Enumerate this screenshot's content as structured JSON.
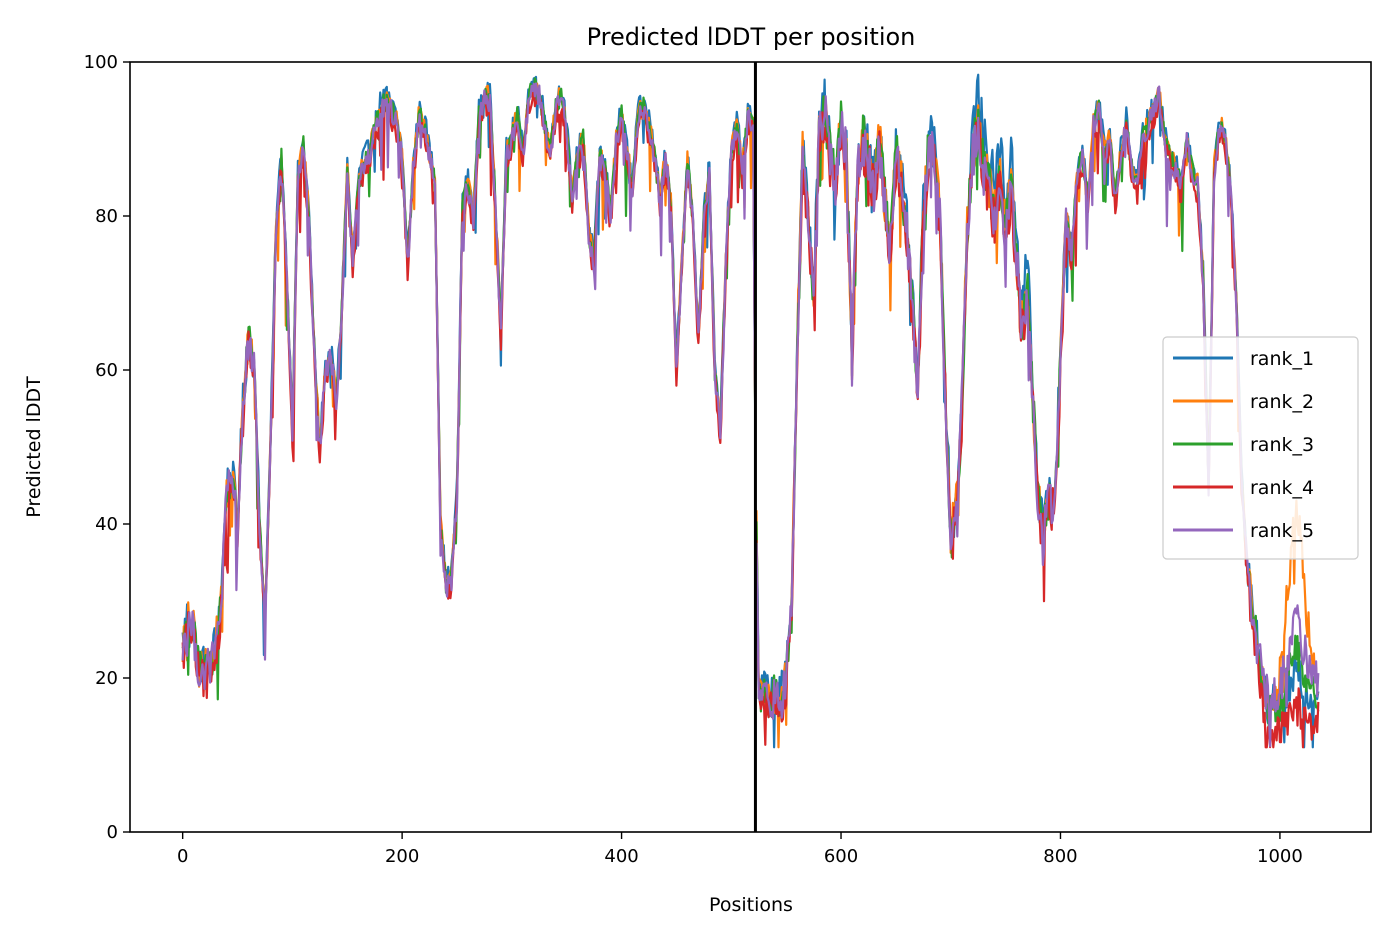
{
  "chart_data": {
    "type": "line",
    "title": "Predicted lDDT per position",
    "xlabel": "Positions",
    "ylabel": "Predicted lDDT",
    "xlim": [
      -48,
      1083
    ],
    "ylim": [
      0,
      100
    ],
    "xticks": [
      0,
      200,
      400,
      600,
      800,
      1000
    ],
    "yticks": [
      0,
      20,
      40,
      60,
      80,
      100
    ],
    "grid": false,
    "legend_position": "center-right",
    "vline_x": 522,
    "base_profile": [
      [
        0,
        24
      ],
      [
        5,
        28
      ],
      [
        10,
        26
      ],
      [
        15,
        21
      ],
      [
        20,
        21
      ],
      [
        25,
        22
      ],
      [
        30,
        24
      ],
      [
        35,
        30
      ],
      [
        40,
        44
      ],
      [
        45,
        46
      ],
      [
        50,
        40
      ],
      [
        55,
        55
      ],
      [
        60,
        64
      ],
      [
        65,
        60
      ],
      [
        70,
        40
      ],
      [
        75,
        28
      ],
      [
        80,
        50
      ],
      [
        85,
        78
      ],
      [
        90,
        88
      ],
      [
        95,
        72
      ],
      [
        100,
        52
      ],
      [
        105,
        85
      ],
      [
        110,
        89
      ],
      [
        115,
        80
      ],
      [
        120,
        62
      ],
      [
        125,
        50
      ],
      [
        130,
        60
      ],
      [
        135,
        62
      ],
      [
        140,
        56
      ],
      [
        145,
        68
      ],
      [
        150,
        86
      ],
      [
        155,
        74
      ],
      [
        160,
        84
      ],
      [
        165,
        87
      ],
      [
        170,
        88
      ],
      [
        175,
        91
      ],
      [
        180,
        94
      ],
      [
        185,
        95
      ],
      [
        190,
        94
      ],
      [
        195,
        92
      ],
      [
        200,
        88
      ],
      [
        205,
        74
      ],
      [
        210,
        86
      ],
      [
        215,
        93
      ],
      [
        220,
        92
      ],
      [
        225,
        88
      ],
      [
        230,
        84
      ],
      [
        235,
        40
      ],
      [
        240,
        32
      ],
      [
        245,
        33
      ],
      [
        250,
        44
      ],
      [
        255,
        82
      ],
      [
        260,
        84
      ],
      [
        265,
        80
      ],
      [
        270,
        93
      ],
      [
        275,
        96
      ],
      [
        280,
        95
      ],
      [
        285,
        82
      ],
      [
        290,
        65
      ],
      [
        295,
        88
      ],
      [
        300,
        90
      ],
      [
        305,
        93
      ],
      [
        310,
        88
      ],
      [
        315,
        95
      ],
      [
        320,
        97
      ],
      [
        325,
        96
      ],
      [
        330,
        92
      ],
      [
        335,
        88
      ],
      [
        340,
        94
      ],
      [
        345,
        96
      ],
      [
        350,
        91
      ],
      [
        355,
        82
      ],
      [
        360,
        88
      ],
      [
        365,
        90
      ],
      [
        370,
        78
      ],
      [
        375,
        74
      ],
      [
        380,
        88
      ],
      [
        385,
        86
      ],
      [
        390,
        80
      ],
      [
        395,
        90
      ],
      [
        400,
        93
      ],
      [
        405,
        88
      ],
      [
        410,
        84
      ],
      [
        415,
        93
      ],
      [
        420,
        94
      ],
      [
        425,
        92
      ],
      [
        430,
        88
      ],
      [
        435,
        82
      ],
      [
        440,
        88
      ],
      [
        445,
        82
      ],
      [
        450,
        60
      ],
      [
        455,
        74
      ],
      [
        460,
        87
      ],
      [
        465,
        80
      ],
      [
        470,
        64
      ],
      [
        475,
        80
      ],
      [
        480,
        86
      ],
      [
        485,
        60
      ],
      [
        490,
        52
      ],
      [
        495,
        74
      ],
      [
        500,
        88
      ],
      [
        505,
        92
      ],
      [
        510,
        86
      ],
      [
        515,
        93
      ],
      [
        520,
        92
      ],
      [
        522,
        50
      ],
      [
        525,
        18
      ],
      [
        530,
        18
      ],
      [
        535,
        17
      ],
      [
        540,
        18
      ],
      [
        545,
        17
      ],
      [
        550,
        20
      ],
      [
        555,
        30
      ],
      [
        560,
        62
      ],
      [
        565,
        88
      ],
      [
        570,
        80
      ],
      [
        575,
        70
      ],
      [
        580,
        90
      ],
      [
        585,
        94
      ],
      [
        590,
        88
      ],
      [
        595,
        84
      ],
      [
        600,
        92
      ],
      [
        605,
        88
      ],
      [
        610,
        62
      ],
      [
        615,
        86
      ],
      [
        620,
        90
      ],
      [
        625,
        88
      ],
      [
        630,
        84
      ],
      [
        635,
        90
      ],
      [
        640,
        82
      ],
      [
        645,
        76
      ],
      [
        650,
        88
      ],
      [
        655,
        84
      ],
      [
        660,
        78
      ],
      [
        665,
        68
      ],
      [
        670,
        58
      ],
      [
        675,
        80
      ],
      [
        680,
        90
      ],
      [
        685,
        88
      ],
      [
        690,
        80
      ],
      [
        695,
        58
      ],
      [
        700,
        38
      ],
      [
        705,
        42
      ],
      [
        710,
        55
      ],
      [
        715,
        78
      ],
      [
        720,
        88
      ],
      [
        725,
        92
      ],
      [
        730,
        86
      ],
      [
        735,
        84
      ],
      [
        740,
        80
      ],
      [
        745,
        86
      ],
      [
        750,
        78
      ],
      [
        755,
        84
      ],
      [
        760,
        74
      ],
      [
        765,
        66
      ],
      [
        770,
        70
      ],
      [
        775,
        56
      ],
      [
        780,
        42
      ],
      [
        785,
        40
      ],
      [
        790,
        44
      ],
      [
        795,
        42
      ],
      [
        800,
        62
      ],
      [
        805,
        80
      ],
      [
        810,
        75
      ],
      [
        815,
        85
      ],
      [
        820,
        88
      ],
      [
        825,
        82
      ],
      [
        830,
        92
      ],
      [
        835,
        94
      ],
      [
        840,
        88
      ],
      [
        845,
        90
      ],
      [
        850,
        82
      ],
      [
        855,
        88
      ],
      [
        860,
        92
      ],
      [
        865,
        86
      ],
      [
        870,
        84
      ],
      [
        875,
        90
      ],
      [
        880,
        92
      ],
      [
        885,
        94
      ],
      [
        890,
        96
      ],
      [
        895,
        90
      ],
      [
        900,
        88
      ],
      [
        905,
        86
      ],
      [
        910,
        84
      ],
      [
        915,
        90
      ],
      [
        920,
        86
      ],
      [
        925,
        84
      ],
      [
        930,
        72
      ],
      [
        935,
        45
      ],
      [
        940,
        86
      ],
      [
        945,
        92
      ],
      [
        950,
        90
      ],
      [
        955,
        84
      ],
      [
        960,
        70
      ],
      [
        965,
        46
      ],
      [
        970,
        35
      ],
      [
        975,
        28
      ],
      [
        980,
        24
      ],
      [
        985,
        18
      ],
      [
        990,
        15
      ],
      [
        995,
        16
      ],
      [
        1000,
        16
      ],
      [
        1005,
        17
      ],
      [
        1010,
        18
      ],
      [
        1015,
        20
      ],
      [
        1020,
        18
      ],
      [
        1025,
        17
      ],
      [
        1030,
        17
      ],
      [
        1035,
        18
      ]
    ],
    "series": [
      {
        "name": "rank_1",
        "color": "#1f77b4"
      },
      {
        "name": "rank_2",
        "color": "#ff7f0e"
      },
      {
        "name": "rank_3",
        "color": "#2ca02c"
      },
      {
        "name": "rank_4",
        "color": "#d62728"
      },
      {
        "name": "rank_5",
        "color": "#9467bd"
      }
    ]
  }
}
